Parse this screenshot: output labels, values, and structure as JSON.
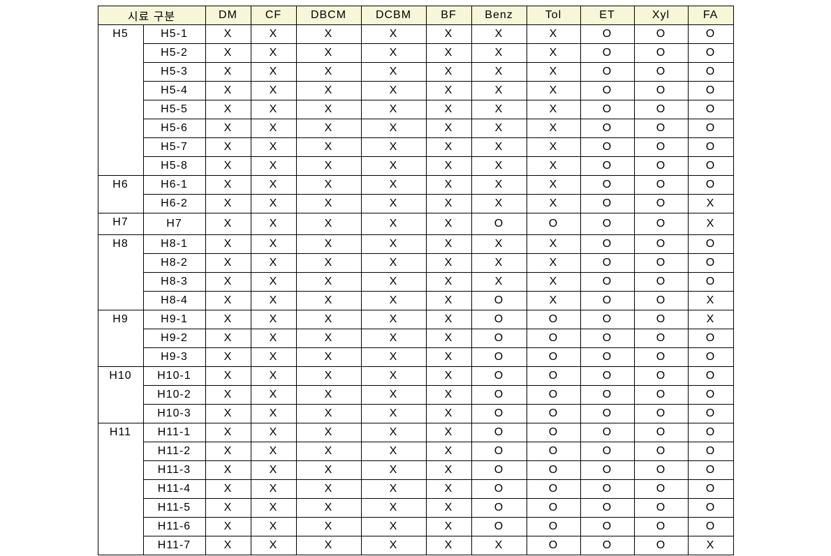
{
  "header": {
    "sample_label": "시료 구분",
    "columns": [
      "DM",
      "CF",
      "DBCM",
      "DCBM",
      "BF",
      "Benz",
      "Tol",
      "ET",
      "Xyl",
      "FA"
    ]
  },
  "col_classes": [
    "col-dm",
    "col-cf",
    "col-dbcm",
    "col-dcbm",
    "col-bf",
    "col-benz",
    "col-tol",
    "col-et",
    "col-xyl",
    "col-fa"
  ],
  "groups": [
    {
      "name": "H5",
      "rows": [
        {
          "sub": "H5-1",
          "cells": [
            "X",
            "X",
            "X",
            "X",
            "X",
            "X",
            "X",
            "O",
            "O",
            "O"
          ]
        },
        {
          "sub": "H5-2",
          "cells": [
            "X",
            "X",
            "X",
            "X",
            "X",
            "X",
            "X",
            "O",
            "O",
            "O"
          ]
        },
        {
          "sub": "H5-3",
          "cells": [
            "X",
            "X",
            "X",
            "X",
            "X",
            "X",
            "X",
            "O",
            "O",
            "O"
          ]
        },
        {
          "sub": "H5-4",
          "cells": [
            "X",
            "X",
            "X",
            "X",
            "X",
            "X",
            "X",
            "O",
            "O",
            "O"
          ]
        },
        {
          "sub": "H5-5",
          "cells": [
            "X",
            "X",
            "X",
            "X",
            "X",
            "X",
            "X",
            "O",
            "O",
            "O"
          ]
        },
        {
          "sub": "H5-6",
          "cells": [
            "X",
            "X",
            "X",
            "X",
            "X",
            "X",
            "X",
            "O",
            "O",
            "O"
          ]
        },
        {
          "sub": "H5-7",
          "cells": [
            "X",
            "X",
            "X",
            "X",
            "X",
            "X",
            "X",
            "O",
            "O",
            "O"
          ]
        },
        {
          "sub": "H5-8",
          "cells": [
            "X",
            "X",
            "X",
            "X",
            "X",
            "X",
            "X",
            "O",
            "O",
            "O"
          ]
        }
      ]
    },
    {
      "name": "H6",
      "rows": [
        {
          "sub": "H6-1",
          "cells": [
            "X",
            "X",
            "X",
            "X",
            "X",
            "X",
            "X",
            "O",
            "O",
            "O"
          ]
        },
        {
          "sub": "H6-2",
          "cells": [
            "X",
            "X",
            "X",
            "X",
            "X",
            "X",
            "X",
            "O",
            "O",
            "X"
          ]
        }
      ]
    },
    {
      "name": "H7",
      "rows": [
        {
          "sub": "H7",
          "cells": [
            "X",
            "X",
            "X",
            "X",
            "X",
            "O",
            "O",
            "O",
            "O",
            "X"
          ]
        }
      ]
    },
    {
      "name": "H8",
      "rows": [
        {
          "sub": "H8-1",
          "cells": [
            "X",
            "X",
            "X",
            "X",
            "X",
            "X",
            "X",
            "O",
            "O",
            "O"
          ]
        },
        {
          "sub": "H8-2",
          "cells": [
            "X",
            "X",
            "X",
            "X",
            "X",
            "X",
            "X",
            "O",
            "O",
            "O"
          ]
        },
        {
          "sub": "H8-3",
          "cells": [
            "X",
            "X",
            "X",
            "X",
            "X",
            "X",
            "X",
            "O",
            "O",
            "O"
          ]
        },
        {
          "sub": "H8-4",
          "cells": [
            "X",
            "X",
            "X",
            "X",
            "X",
            "O",
            "X",
            "O",
            "O",
            "X"
          ]
        }
      ]
    },
    {
      "name": "H9",
      "rows": [
        {
          "sub": "H9-1",
          "cells": [
            "X",
            "X",
            "X",
            "X",
            "X",
            "O",
            "O",
            "O",
            "O",
            "X"
          ]
        },
        {
          "sub": "H9-2",
          "cells": [
            "X",
            "X",
            "X",
            "X",
            "X",
            "O",
            "O",
            "O",
            "O",
            "O"
          ]
        },
        {
          "sub": "H9-3",
          "cells": [
            "X",
            "X",
            "X",
            "X",
            "X",
            "O",
            "O",
            "O",
            "O",
            "O"
          ]
        }
      ]
    },
    {
      "name": "H10",
      "rows": [
        {
          "sub": "H10-1",
          "cells": [
            "X",
            "X",
            "X",
            "X",
            "X",
            "O",
            "O",
            "O",
            "O",
            "O"
          ]
        },
        {
          "sub": "H10-2",
          "cells": [
            "X",
            "X",
            "X",
            "X",
            "X",
            "O",
            "O",
            "O",
            "O",
            "O"
          ]
        },
        {
          "sub": "H10-3",
          "cells": [
            "X",
            "X",
            "X",
            "X",
            "X",
            "O",
            "O",
            "O",
            "O",
            "O"
          ]
        }
      ]
    },
    {
      "name": "H11",
      "rows": [
        {
          "sub": "H11-1",
          "cells": [
            "X",
            "X",
            "X",
            "X",
            "X",
            "O",
            "O",
            "O",
            "O",
            "O"
          ]
        },
        {
          "sub": "H11-2",
          "cells": [
            "X",
            "X",
            "X",
            "X",
            "X",
            "O",
            "O",
            "O",
            "O",
            "O"
          ]
        },
        {
          "sub": "H11-3",
          "cells": [
            "X",
            "X",
            "X",
            "X",
            "X",
            "O",
            "O",
            "O",
            "O",
            "O"
          ]
        },
        {
          "sub": "H11-4",
          "cells": [
            "X",
            "X",
            "X",
            "X",
            "X",
            "O",
            "O",
            "O",
            "O",
            "O"
          ]
        },
        {
          "sub": "H11-5",
          "cells": [
            "X",
            "X",
            "X",
            "X",
            "X",
            "O",
            "O",
            "O",
            "O",
            "O"
          ]
        },
        {
          "sub": "H11-6",
          "cells": [
            "X",
            "X",
            "X",
            "X",
            "X",
            "O",
            "O",
            "O",
            "O",
            "O"
          ]
        },
        {
          "sub": "H11-7",
          "cells": [
            "X",
            "X",
            "X",
            "X",
            "X",
            "X",
            "O",
            "O",
            "O",
            "X"
          ]
        }
      ]
    }
  ]
}
